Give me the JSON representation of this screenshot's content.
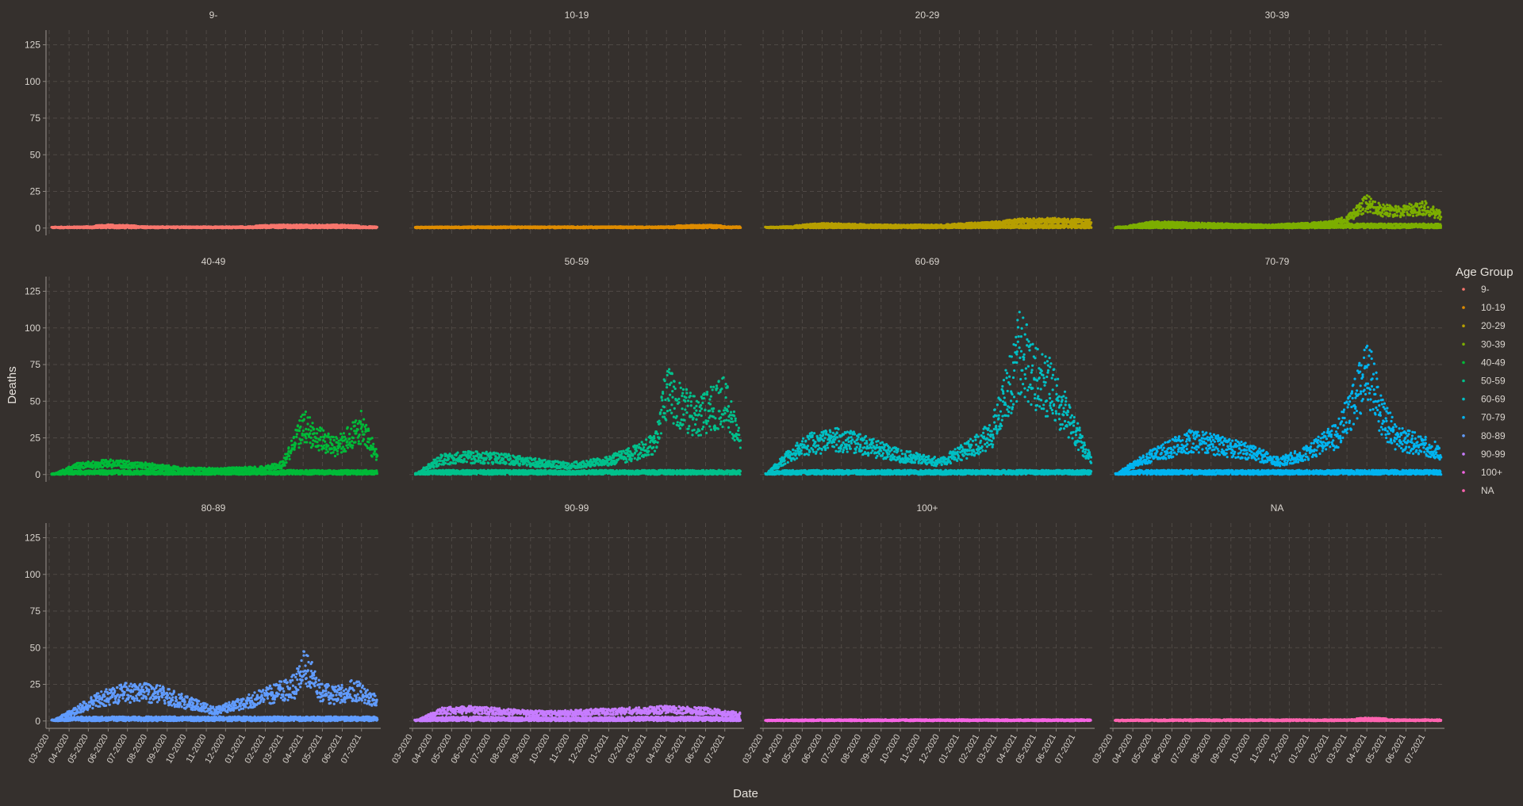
{
  "chart_data": {
    "type": "scatter",
    "facet_titles": [
      "9-",
      "10-19",
      "20-29",
      "30-39",
      "40-49",
      "50-59",
      "60-69",
      "70-79",
      "80-89",
      "90-99",
      "100+",
      "NA"
    ],
    "xlabel": "Date",
    "ylabel": "Deaths",
    "yticks": [
      0,
      25,
      50,
      75,
      100,
      125
    ],
    "ylim": [
      -5,
      135
    ],
    "xlim": [
      "2020-02-25",
      "2021-07-31"
    ],
    "xtick_labels": [
      "03-2020",
      "04-2020",
      "05-2020",
      "06-2020",
      "07-2020",
      "08-2020",
      "09-2020",
      "10-2020",
      "11-2020",
      "12-2020",
      "01-2021",
      "02-2021",
      "03-2021",
      "04-2021",
      "05-2021",
      "06-2021",
      "07-2021"
    ],
    "xtick_dates": [
      "2020-03-01",
      "2020-04-01",
      "2020-05-01",
      "2020-06-01",
      "2020-07-01",
      "2020-08-01",
      "2020-09-01",
      "2020-10-01",
      "2020-11-01",
      "2020-12-01",
      "2021-01-01",
      "2021-02-01",
      "2021-03-01",
      "2021-04-01",
      "2021-05-01",
      "2021-06-01",
      "2021-07-01"
    ],
    "grid": true,
    "legend_title": "Age Group",
    "legend_position": "right",
    "series": [
      {
        "name": "9-",
        "color": "#f8766d",
        "dates": [
          "2020-03-05",
          "2020-06-01",
          "2020-09-01",
          "2020-12-01",
          "2021-03-01",
          "2021-06-01",
          "2021-07-25"
        ],
        "upper": [
          0,
          2,
          1,
          1,
          2,
          2,
          1
        ],
        "lower": [
          0,
          0,
          0,
          0,
          0,
          0,
          0
        ]
      },
      {
        "name": "10-19",
        "color": "#de8c00",
        "dates": [
          "2020-03-05",
          "2020-06-01",
          "2020-09-01",
          "2020-12-01",
          "2021-03-01",
          "2021-06-01",
          "2021-07-25"
        ],
        "upper": [
          0,
          1,
          1,
          1,
          1,
          2,
          1
        ],
        "lower": [
          0,
          0,
          0,
          0,
          0,
          0,
          0
        ]
      },
      {
        "name": "20-29",
        "color": "#b79f00",
        "dates": [
          "2020-03-05",
          "2020-06-01",
          "2020-09-01",
          "2020-12-01",
          "2021-03-01",
          "2021-04-15",
          "2021-06-01",
          "2021-07-25"
        ],
        "upper": [
          0,
          3,
          2,
          2,
          4,
          6,
          6,
          5
        ],
        "lower": [
          0,
          0,
          0,
          0,
          0,
          0,
          0,
          0
        ]
      },
      {
        "name": "30-39",
        "color": "#7cae00",
        "dates": [
          "2020-03-05",
          "2020-05-01",
          "2020-08-01",
          "2020-11-01",
          "2021-02-01",
          "2021-03-01",
          "2021-04-01",
          "2021-04-20",
          "2021-05-15",
          "2021-07-01",
          "2021-07-25"
        ],
        "upper": [
          0,
          4,
          3,
          2,
          4,
          7,
          20,
          15,
          13,
          16,
          10
        ],
        "lower": [
          0,
          0,
          0,
          0,
          0,
          0,
          0,
          0,
          0,
          0,
          0
        ]
      },
      {
        "name": "40-49",
        "color": "#00ba38",
        "dates": [
          "2020-03-05",
          "2020-04-15",
          "2020-06-01",
          "2020-08-01",
          "2020-10-01",
          "2020-12-01",
          "2021-02-01",
          "2021-03-01",
          "2021-04-01",
          "2021-04-20",
          "2021-05-20",
          "2021-07-01",
          "2021-07-25"
        ],
        "upper": [
          0,
          7,
          9,
          7,
          4,
          4,
          5,
          8,
          40,
          30,
          22,
          38,
          15
        ],
        "lower": [
          0,
          0,
          0,
          0,
          0,
          0,
          0,
          0,
          0,
          0,
          0,
          0,
          0
        ]
      },
      {
        "name": "50-59",
        "color": "#00c08b",
        "dates": [
          "2020-03-05",
          "2020-04-15",
          "2020-06-01",
          "2020-07-15",
          "2020-09-01",
          "2020-11-01",
          "2021-01-01",
          "2021-02-15",
          "2021-03-15",
          "2021-04-01",
          "2021-04-20",
          "2021-05-20",
          "2021-07-01",
          "2021-07-25"
        ],
        "upper": [
          0,
          12,
          14,
          13,
          10,
          7,
          11,
          18,
          25,
          65,
          55,
          45,
          60,
          25
        ],
        "lower": [
          0,
          0,
          0,
          0,
          0,
          0,
          0,
          0,
          0,
          0,
          0,
          0,
          0,
          0
        ]
      },
      {
        "name": "60-69",
        "color": "#00bfc4",
        "dates": [
          "2020-03-05",
          "2020-04-10",
          "2020-05-15",
          "2020-07-01",
          "2020-08-15",
          "2020-10-01",
          "2020-12-01",
          "2021-01-15",
          "2021-02-20",
          "2021-03-20",
          "2021-04-05",
          "2021-04-25",
          "2021-05-20",
          "2021-06-20",
          "2021-07-25"
        ],
        "upper": [
          0,
          15,
          25,
          28,
          22,
          15,
          10,
          20,
          32,
          70,
          100,
          80,
          70,
          45,
          12
        ],
        "lower": [
          0,
          0,
          0,
          0,
          0,
          0,
          0,
          0,
          0,
          0,
          0,
          0,
          0,
          0,
          0
        ]
      },
      {
        "name": "70-79",
        "color": "#00b4f0",
        "dates": [
          "2020-03-05",
          "2020-04-10",
          "2020-05-15",
          "2020-07-01",
          "2020-08-15",
          "2020-10-01",
          "2020-11-15",
          "2021-01-01",
          "2021-02-15",
          "2021-03-20",
          "2021-04-05",
          "2021-04-25",
          "2021-05-20",
          "2021-06-20",
          "2021-07-25"
        ],
        "upper": [
          0,
          10,
          18,
          27,
          23,
          18,
          10,
          18,
          32,
          70,
          80,
          45,
          28,
          25,
          18
        ],
        "lower": [
          0,
          0,
          0,
          0,
          0,
          0,
          0,
          0,
          0,
          0,
          0,
          0,
          0,
          0,
          0
        ]
      },
      {
        "name": "80-89",
        "color": "#619cff",
        "dates": [
          "2020-03-05",
          "2020-04-10",
          "2020-05-15",
          "2020-07-01",
          "2020-08-15",
          "2020-10-01",
          "2020-11-15",
          "2021-01-01",
          "2021-02-15",
          "2021-03-20",
          "2021-04-05",
          "2021-04-25",
          "2021-05-20",
          "2021-06-20",
          "2021-07-25"
        ],
        "upper": [
          0,
          8,
          17,
          23,
          22,
          15,
          8,
          15,
          22,
          28,
          45,
          25,
          20,
          25,
          15
        ],
        "lower": [
          0,
          0,
          0,
          0,
          0,
          0,
          0,
          0,
          0,
          0,
          0,
          0,
          0,
          0,
          0
        ]
      },
      {
        "name": "90-99",
        "color": "#c77cff",
        "dates": [
          "2020-03-05",
          "2020-04-15",
          "2020-06-01",
          "2020-08-01",
          "2020-10-01",
          "2020-12-01",
          "2021-02-01",
          "2021-04-01",
          "2021-06-01",
          "2021-07-25"
        ],
        "upper": [
          0,
          8,
          9,
          7,
          6,
          7,
          8,
          9,
          8,
          5
        ],
        "lower": [
          0,
          0,
          0,
          0,
          0,
          0,
          0,
          0,
          0,
          0
        ]
      },
      {
        "name": "100+",
        "color": "#f564e3",
        "dates": [
          "2020-03-05",
          "2020-06-01",
          "2020-09-01",
          "2020-12-01",
          "2021-03-01",
          "2021-06-01",
          "2021-07-25"
        ],
        "upper": [
          0,
          1,
          1,
          1,
          1,
          1,
          1
        ],
        "lower": [
          0,
          0,
          0,
          0,
          0,
          0,
          0
        ]
      },
      {
        "name": "NA",
        "color": "#ff64b0",
        "dates": [
          "2020-03-05",
          "2020-06-01",
          "2020-09-01",
          "2020-12-01",
          "2021-03-01",
          "2021-04-01",
          "2021-06-01",
          "2021-07-25"
        ],
        "upper": [
          0,
          1,
          1,
          1,
          1,
          2,
          1,
          1
        ],
        "lower": [
          0,
          0,
          0,
          0,
          0,
          0,
          0,
          0
        ]
      }
    ]
  }
}
